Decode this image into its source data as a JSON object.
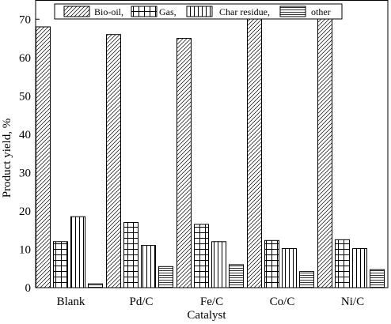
{
  "chart_data": {
    "type": "bar",
    "title": "",
    "xlabel": "Catalyst",
    "ylabel": "Product yield, %",
    "categories": [
      "Blank",
      "Pd/C",
      "Fe/C",
      "Co/C",
      "Ni/C"
    ],
    "ylim": [
      0,
      75
    ],
    "yticks": [
      0,
      10,
      20,
      30,
      40,
      50,
      60,
      70
    ],
    "grid": false,
    "legend_position": "top",
    "series": [
      {
        "name": "Bio-oil,",
        "pattern": "diagonal-hatch",
        "values": [
          68,
          66,
          65,
          73,
          72
        ]
      },
      {
        "name": "Gas,",
        "pattern": "grid",
        "values": [
          12,
          17,
          16.5,
          12.3,
          12.5
        ]
      },
      {
        "name": "Char residue,",
        "pattern": "vertical-lines",
        "values": [
          18.5,
          11,
          12,
          10.2,
          10.2
        ]
      },
      {
        "name": "other",
        "pattern": "horizontal-lines",
        "values": [
          1,
          5.5,
          6,
          4.2,
          4.7
        ]
      }
    ]
  }
}
